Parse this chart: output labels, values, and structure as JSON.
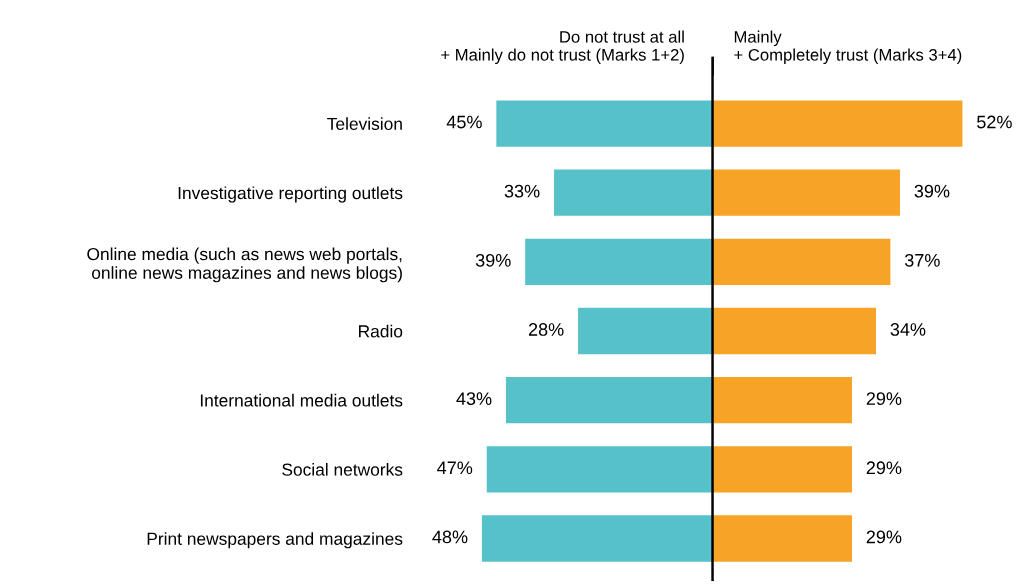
{
  "chart_data": [
    {
      "type": "bar",
      "orientation": "horizontal",
      "legend": false,
      "grid": false,
      "tick_labels": "y",
      "title": "Do not trust at all\n+ Mainly do not trust (Marks 1+2)",
      "categories": [
        "Television",
        "Investigative reporting outlets",
        "Online media (such as news web portals,\nonline news magazines and news blogs)",
        "Radio",
        "International media outlets",
        "Social networks",
        "Print newspapers and magazines"
      ],
      "series": [
        {
          "color": "#56c1c9",
          "values": [
            45,
            33,
            39,
            28,
            43,
            47,
            48
          ],
          "value_labels": [
            "45%",
            "33%",
            "39%",
            "28%",
            "43%",
            "47%",
            "48%"
          ]
        }
      ]
    },
    {
      "type": "bar",
      "orientation": "horizontal",
      "legend": false,
      "grid": false,
      "tick_labels": false,
      "title": "Mainly\n+ Completely trust (Marks 3+4)",
      "series": [
        {
          "color": "#f7a325",
          "values": [
            52,
            39,
            37,
            34,
            29,
            29,
            29
          ],
          "value_labels": [
            "52%",
            "39%",
            "37%",
            "34%",
            "29%",
            "29%",
            "29%"
          ]
        }
      ]
    }
  ]
}
